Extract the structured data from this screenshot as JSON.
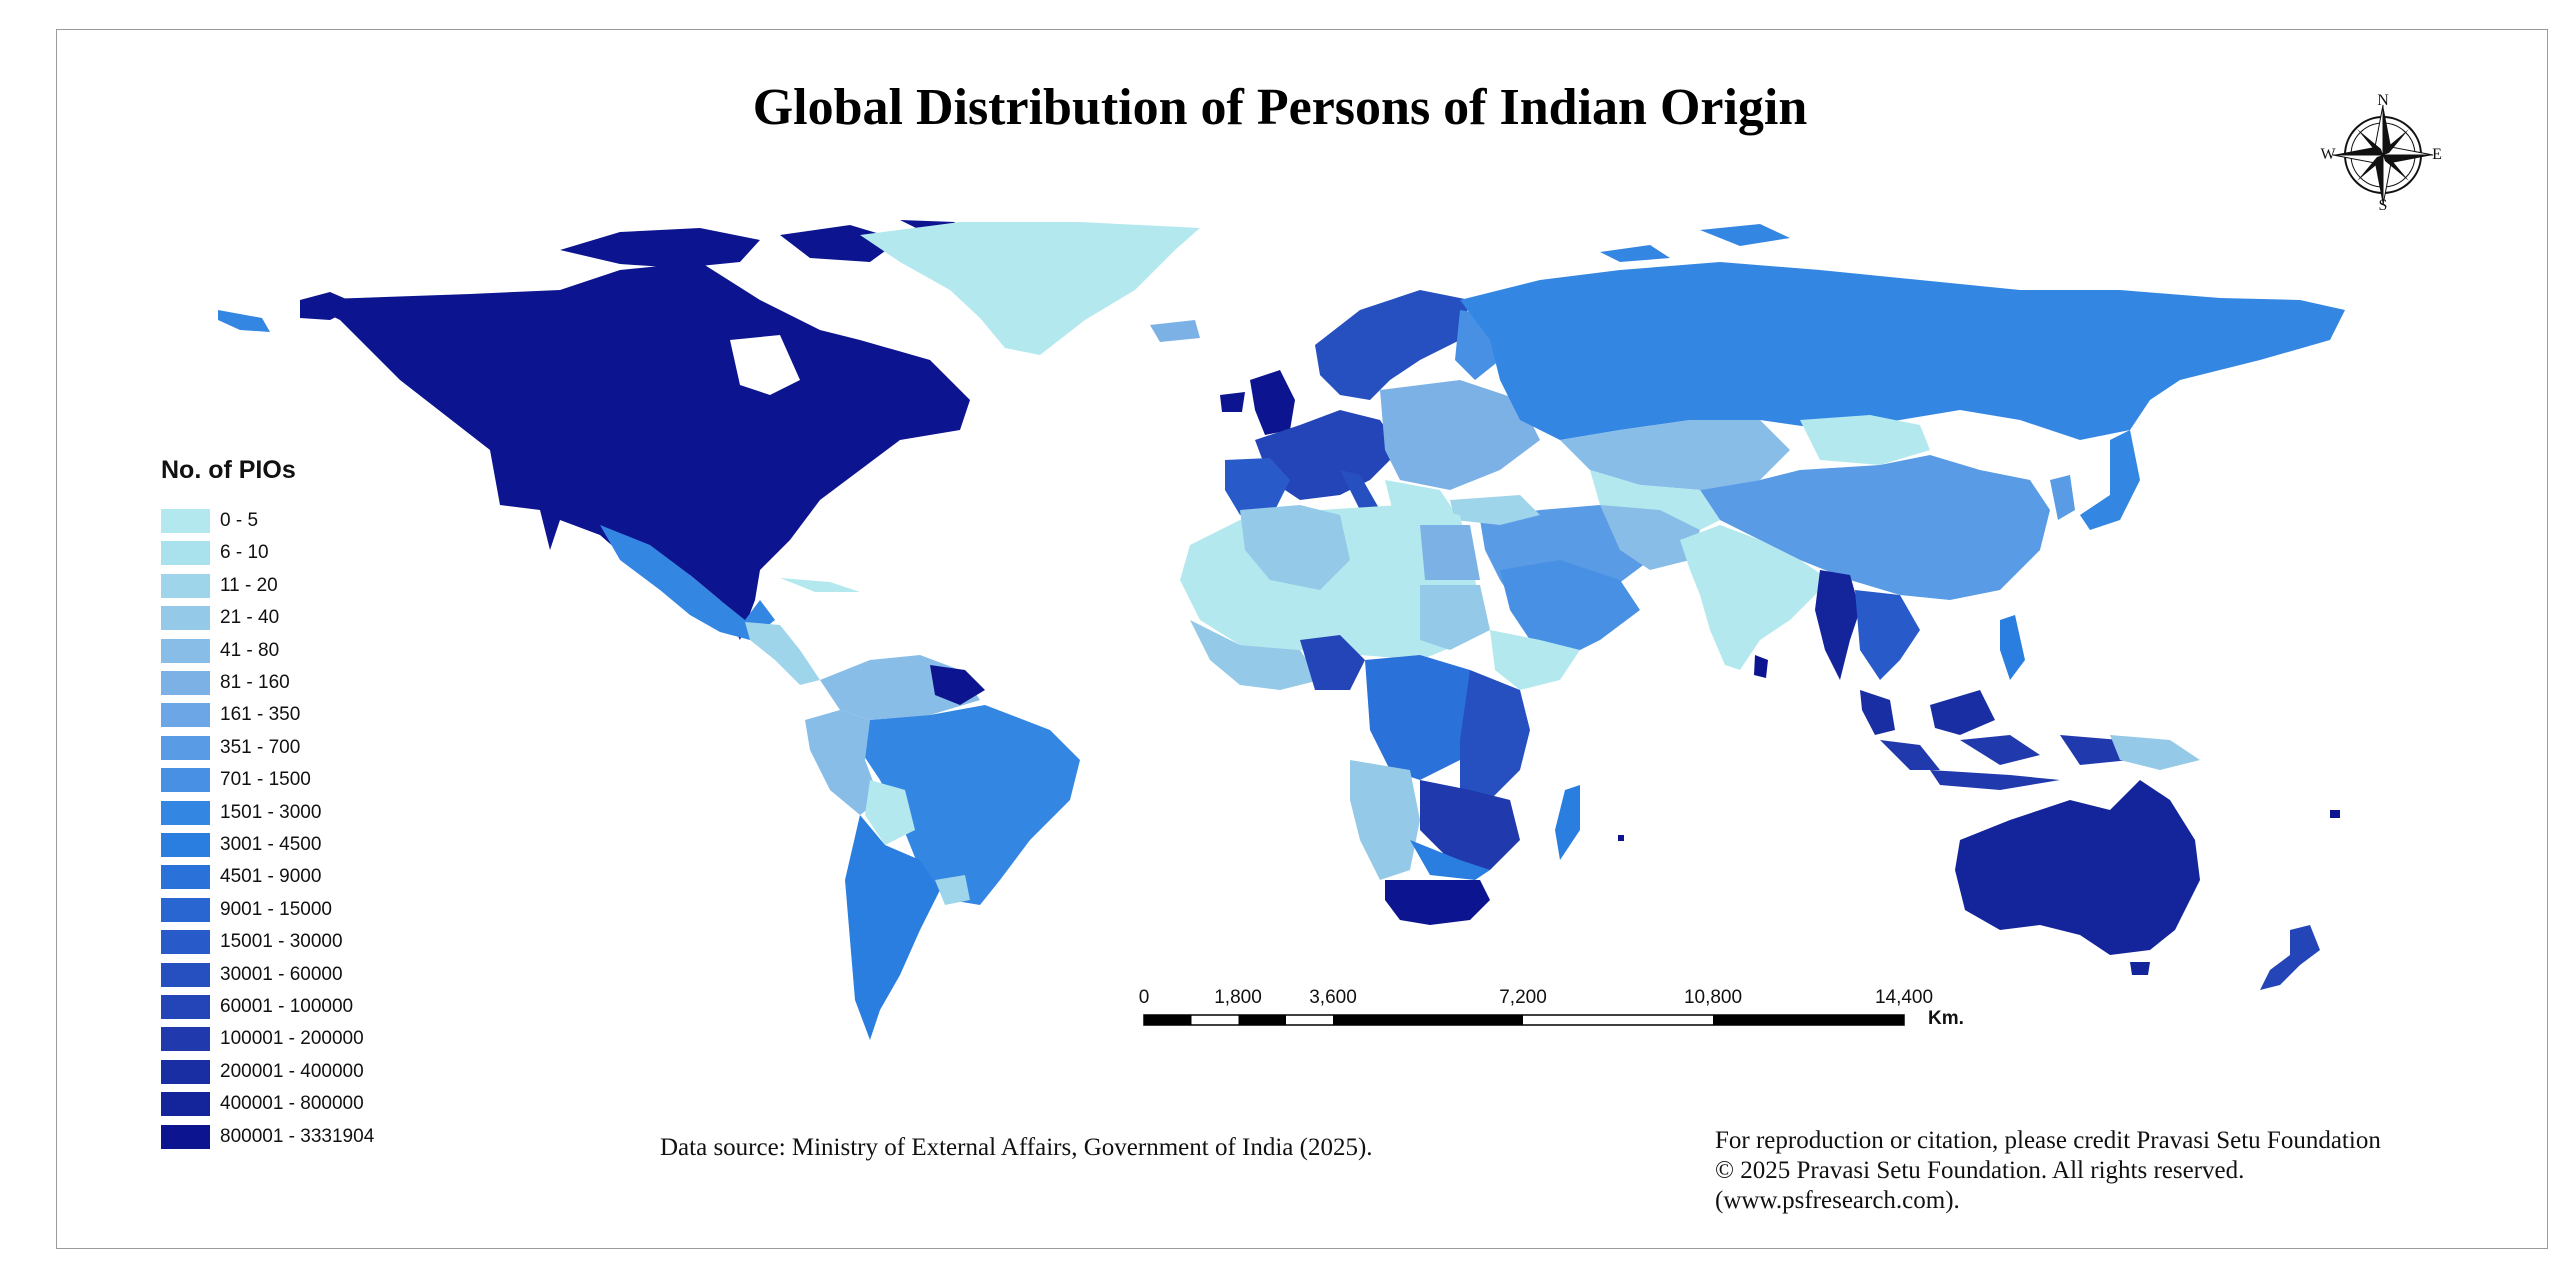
{
  "map": {
    "title": "Global Distribution of Persons of Indian Origin",
    "compass": {
      "n": "N",
      "s": "S",
      "e": "E",
      "w": "W"
    },
    "legend": {
      "title": "No. of PIOs",
      "classes": [
        {
          "label": "0 - 5",
          "color": "#b3e9ee"
        },
        {
          "label": "6 - 10",
          "color": "#a9e1ec"
        },
        {
          "label": "11 - 20",
          "color": "#9fd5ea"
        },
        {
          "label": "21 - 40",
          "color": "#94c9e8"
        },
        {
          "label": "41 - 80",
          "color": "#88bde7"
        },
        {
          "label": "81 - 160",
          "color": "#7cb1e6"
        },
        {
          "label": "161 - 350",
          "color": "#6ca6e6"
        },
        {
          "label": "351 - 700",
          "color": "#5a9be5"
        },
        {
          "label": "701 - 1500",
          "color": "#4790e4"
        },
        {
          "label": "1501 - 3000",
          "color": "#3486e3"
        },
        {
          "label": "3001 - 4500",
          "color": "#2a7ee0"
        },
        {
          "label": "4501 - 9000",
          "color": "#2a71d9"
        },
        {
          "label": "9001 - 15000",
          "color": "#2966d1"
        },
        {
          "label": "15001 - 30000",
          "color": "#285bc9"
        },
        {
          "label": "30001 - 60000",
          "color": "#2650c0"
        },
        {
          "label": "60001 - 100000",
          "color": "#2445b7"
        },
        {
          "label": "100001 - 200000",
          "color": "#2039ad"
        },
        {
          "label": "200001 - 400000",
          "color": "#1a2ea3"
        },
        {
          "label": "400001 - 800000",
          "color": "#14249a"
        },
        {
          "label": "800001 - 3331904",
          "color": "#0c148f"
        }
      ]
    },
    "scale_bar": {
      "labels": [
        "0",
        "1,800",
        "3,600",
        "7,200",
        "10,800",
        "14,400"
      ],
      "unit": "Km."
    },
    "data_source": "Data source: Ministry of External Affairs, Government of India (2025).",
    "credits": [
      "For reproduction or citation, please credit Pravasi Setu Foundation",
      "© 2025 Pravasi Setu Foundation. All rights reserved.",
      "(www.psfresearch.com)."
    ]
  }
}
